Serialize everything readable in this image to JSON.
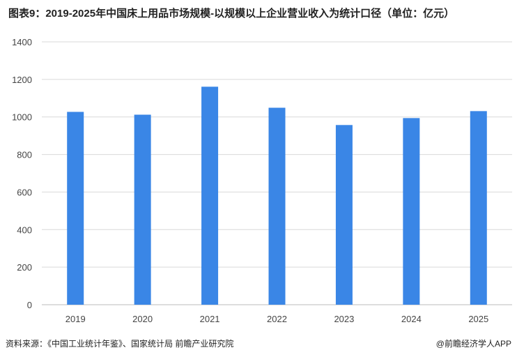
{
  "title": "图表9：2019-2025年中国床上用品市场规模-以规模以上企业营业收入为统计口径（单位：亿元）",
  "source": "资料来源：《中国工业统计年鉴》、国家统计局  前瞻产业研究院",
  "brand": "@前瞻经济学人APP",
  "watermark": "前瞻产业研究院",
  "chart_data": {
    "type": "bar",
    "title": "图表9：2019-2025年中国床上用品市场规模-以规模以上企业营业收入为统计口径（单位：亿元）",
    "categories": [
      "2019",
      "2020",
      "2021",
      "2022",
      "2023",
      "2024",
      "2025"
    ],
    "values": [
      1027,
      1012,
      1161,
      1049,
      957,
      994,
      1031
    ],
    "ylim": [
      0,
      1400
    ],
    "yticks": [
      0,
      200,
      400,
      600,
      800,
      1000,
      1200,
      1400
    ],
    "grid": true,
    "bar_color": "#3a86e6",
    "xlabel": "",
    "ylabel": ""
  }
}
